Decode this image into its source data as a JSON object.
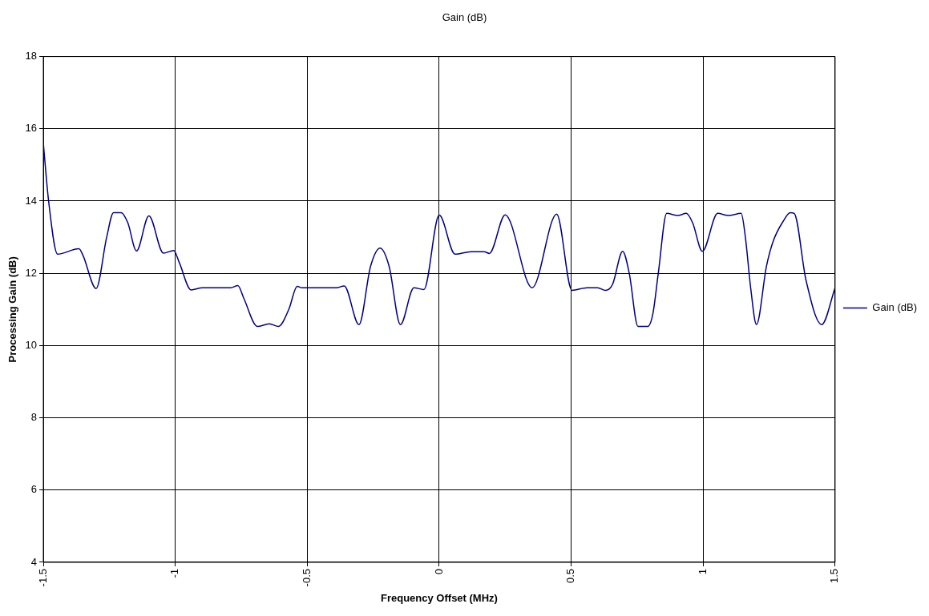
{
  "chart_data": {
    "type": "line",
    "title": "Gain (dB)",
    "xlabel": "Frequency Offset (MHz)",
    "ylabel": "Processing Gain (dB)",
    "xlim": [
      -1.5,
      1.5
    ],
    "xticks": [
      -1.5,
      -1,
      -0.5,
      0,
      0.5,
      1,
      1.5
    ],
    "ylim": [
      4,
      18
    ],
    "yticks": [
      4,
      6,
      8,
      10,
      12,
      14,
      16,
      18
    ],
    "grid": true,
    "legend": "right",
    "marker": "none",
    "line_style": "solid",
    "series": [
      {
        "name": "Gain (dB)",
        "color": "#000080",
        "x": [
          -1.5,
          -1.48,
          -1.446,
          -1.365,
          -1.35,
          -1.3,
          -1.26,
          -1.234,
          -1.205,
          -1.18,
          -1.147,
          -1.1,
          -1.045,
          -1.006,
          -0.985,
          -0.94,
          -0.897,
          -0.79,
          -0.763,
          -0.74,
          -0.689,
          -0.644,
          -0.609,
          -0.57,
          -0.538,
          -0.52,
          -0.39,
          -0.36,
          -0.304,
          -0.26,
          -0.224,
          -0.19,
          -0.147,
          -0.096,
          -0.058,
          0.0,
          0.06,
          0.12,
          0.17,
          0.19,
          0.25,
          0.352,
          0.445,
          0.503,
          0.56,
          0.6,
          0.63,
          0.657,
          0.695,
          0.72,
          0.753,
          0.79,
          0.81,
          0.83,
          0.862,
          0.904,
          0.936,
          0.96,
          0.997,
          1.055,
          1.096,
          1.144,
          1.16,
          1.18,
          1.202,
          1.24,
          1.266,
          1.304,
          1.33,
          1.345,
          1.39,
          1.449,
          1.5
        ],
        "values": [
          15.6,
          14.0,
          12.53,
          12.68,
          12.5,
          11.58,
          13.0,
          13.68,
          13.68,
          13.4,
          12.62,
          13.59,
          12.56,
          12.63,
          12.3,
          11.54,
          11.6,
          11.6,
          11.66,
          11.3,
          10.53,
          10.6,
          10.53,
          11.0,
          11.64,
          11.6,
          11.6,
          11.65,
          10.58,
          12.2,
          12.7,
          12.2,
          10.58,
          11.6,
          11.55,
          13.61,
          12.53,
          12.6,
          12.6,
          12.55,
          13.62,
          11.6,
          13.64,
          11.53,
          11.6,
          11.6,
          11.53,
          11.7,
          12.61,
          12.0,
          10.53,
          10.53,
          10.9,
          12.0,
          13.66,
          13.6,
          13.66,
          13.4,
          12.61,
          13.66,
          13.6,
          13.66,
          13.0,
          11.6,
          10.58,
          12.2,
          12.9,
          13.45,
          13.68,
          13.66,
          11.8,
          10.58,
          11.6
        ]
      }
    ]
  }
}
